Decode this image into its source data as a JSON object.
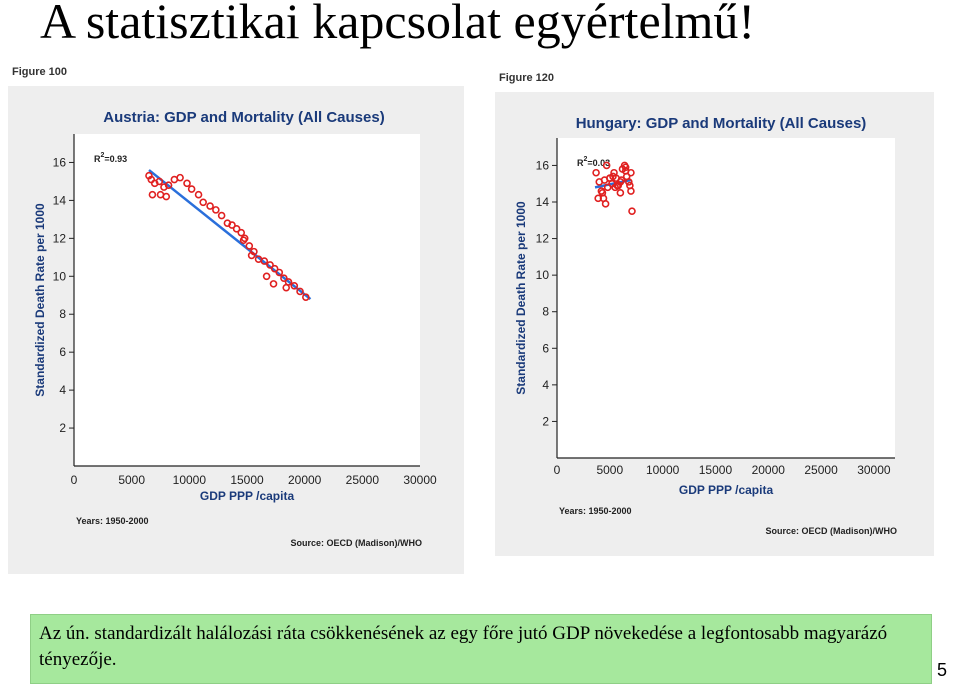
{
  "slide": {
    "title": "A statisztikai kapcsolat egyértelmű!",
    "caption": "Az ún. standardizált halálozási ráta csökkenésének az egy főre jutó GDP növekedése a legfontosabb magyarázó tényezője.",
    "page_number": "5"
  },
  "chart_data": [
    {
      "type": "scatter",
      "figure_label": "Figure 100",
      "title": "Austria: GDP and Mortality (All Causes)",
      "xlabel": "GDP PPP /capita",
      "ylabel": "Standardized Death Rate per 1000",
      "r2_label": "R",
      "r2_value": "=0.93",
      "years_note": "Years: 1950-2000",
      "source_note": "Source: OECD (Madison)/WHO",
      "xlim": [
        0,
        30000
      ],
      "ylim": [
        0,
        17.5
      ],
      "x_ticks": [
        0,
        5000,
        10000,
        15000,
        20000,
        25000,
        30000
      ],
      "y_ticks": [
        2,
        4,
        6,
        8,
        10,
        12,
        14,
        16
      ],
      "trendline": {
        "x": [
          6500,
          20500
        ],
        "y": [
          15.6,
          8.8
        ]
      },
      "series": [
        {
          "x": [
            6500,
            6700,
            7000,
            7400,
            7800,
            8200,
            8700,
            9200,
            9800,
            10200,
            6800,
            7500,
            8000,
            10800,
            11200,
            11800,
            12300,
            12800,
            13300,
            13700,
            14100,
            14500,
            14800,
            15200,
            15600,
            16000,
            16500,
            17000,
            17400,
            17800,
            18200,
            18600,
            19100,
            19600,
            20100,
            14700,
            15400,
            16700,
            17300,
            18400
          ],
          "y": [
            15.3,
            15.1,
            14.9,
            15.0,
            14.7,
            14.8,
            15.1,
            15.2,
            14.9,
            14.6,
            14.3,
            14.3,
            14.2,
            14.3,
            13.9,
            13.7,
            13.5,
            13.2,
            12.8,
            12.7,
            12.5,
            12.3,
            12.0,
            11.6,
            11.3,
            10.9,
            10.8,
            10.6,
            10.4,
            10.2,
            9.9,
            9.7,
            9.5,
            9.2,
            8.9,
            11.9,
            11.1,
            10.0,
            9.6,
            9.4
          ]
        }
      ]
    },
    {
      "type": "scatter",
      "figure_label": "Figure 120",
      "title": "Hungary: GDP and Mortality (All Causes)",
      "xlabel": "GDP PPP /capita",
      "ylabel": "Standardized Death Rate per 1000",
      "r2_label": "R",
      "r2_value": "=0.03",
      "years_note": "Years: 1950-2000",
      "source_note": "Source: OECD (Madison)/WHO",
      "xlim": [
        0,
        32000
      ],
      "ylim": [
        0,
        17.5
      ],
      "x_ticks": [
        0,
        5000,
        10000,
        15000,
        20000,
        25000,
        30000
      ],
      "y_ticks": [
        2,
        4,
        6,
        8,
        10,
        12,
        14,
        16
      ],
      "trendline": {
        "x": [
          3600,
          7000
        ],
        "y": [
          14.8,
          15.2
        ]
      },
      "series": [
        {
          "x": [
            3700,
            4000,
            4200,
            4400,
            4600,
            4800,
            5000,
            5200,
            5400,
            5600,
            5800,
            6000,
            6200,
            6400,
            6600,
            6800,
            7000,
            4500,
            5000,
            5500,
            6000,
            6500,
            7000,
            5300,
            5700,
            6100,
            6500,
            3900,
            4300,
            6900,
            7100,
            4700
          ],
          "y": [
            15.6,
            15.1,
            14.6,
            14.2,
            13.9,
            14.8,
            15.3,
            15.0,
            15.6,
            15.3,
            14.9,
            15.1,
            15.8,
            16.0,
            15.4,
            15.1,
            14.6,
            15.2,
            15.3,
            14.8,
            14.5,
            15.9,
            15.6,
            15.4,
            14.9,
            15.2,
            15.7,
            14.2,
            14.5,
            14.9,
            13.5,
            16.0
          ]
        }
      ]
    }
  ]
}
